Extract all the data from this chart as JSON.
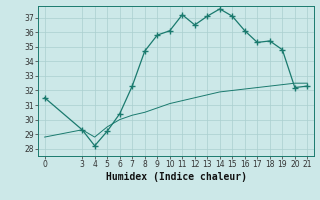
{
  "xlabel": "Humidex (Indice chaleur)",
  "bg_color": "#cce8e8",
  "line_color": "#1a7a6e",
  "grid_color": "#aacfcf",
  "xlim": [
    -0.5,
    21.5
  ],
  "ylim": [
    27.5,
    37.8
  ],
  "xticks": [
    0,
    3,
    4,
    5,
    6,
    7,
    8,
    9,
    10,
    11,
    12,
    13,
    14,
    15,
    16,
    17,
    18,
    19,
    20,
    21
  ],
  "yticks": [
    28,
    29,
    30,
    31,
    32,
    33,
    34,
    35,
    36,
    37
  ],
  "series1_x": [
    0,
    3,
    4,
    5,
    6,
    7,
    8,
    9,
    10,
    11,
    12,
    13,
    14,
    15,
    16,
    17,
    18,
    19,
    20,
    21
  ],
  "series1_y": [
    31.5,
    29.3,
    28.2,
    29.2,
    30.4,
    32.3,
    34.7,
    35.8,
    36.1,
    37.2,
    36.5,
    37.1,
    37.6,
    37.1,
    36.1,
    35.3,
    35.4,
    34.8,
    32.2,
    32.3
  ],
  "series2_x": [
    0,
    3,
    4,
    5,
    6,
    7,
    8,
    9,
    10,
    11,
    12,
    13,
    14,
    15,
    16,
    17,
    18,
    19,
    20,
    21
  ],
  "series2_y": [
    28.8,
    29.3,
    28.8,
    29.5,
    30.0,
    30.3,
    30.5,
    30.8,
    31.1,
    31.3,
    31.5,
    31.7,
    31.9,
    32.0,
    32.1,
    32.2,
    32.3,
    32.4,
    32.5,
    32.5
  ],
  "tick_fontsize": 5.5,
  "xlabel_fontsize": 7.0
}
